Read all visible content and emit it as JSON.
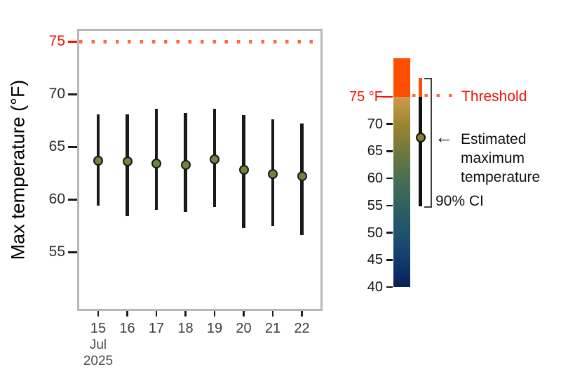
{
  "figure": {
    "y_axis": {
      "title": "Max temperature (°F)",
      "ticks": [
        {
          "label": "75",
          "value": 75,
          "red": true
        },
        {
          "label": "70",
          "value": 70,
          "red": false
        },
        {
          "label": "65",
          "value": 65,
          "red": false
        },
        {
          "label": "60",
          "value": 60,
          "red": false
        },
        {
          "label": "55",
          "value": 55,
          "red": false
        }
      ]
    },
    "x_axis": {
      "tick_labels": [
        "15",
        "16",
        "17",
        "18",
        "19",
        "20",
        "21",
        "22"
      ],
      "month_label": "Jul",
      "year_label": "2025"
    }
  },
  "chart_data": {
    "type": "errorbar",
    "title": "",
    "xlabel": "",
    "ylabel": "Max temperature (°F)",
    "categories": [
      "2025-07-15",
      "2025-07-16",
      "2025-07-17",
      "2025-07-18",
      "2025-07-19",
      "2025-07-20",
      "2025-07-21",
      "2025-07-22"
    ],
    "series": [
      {
        "name": "Estimated maximum temperature",
        "values": [
          63.7,
          63.6,
          63.4,
          63.3,
          63.8,
          62.8,
          62.4,
          62.2
        ]
      },
      {
        "name": "90% CI lower",
        "values": [
          59.4,
          58.4,
          59.0,
          58.8,
          59.3,
          57.3,
          57.5,
          56.6
        ]
      },
      {
        "name": "90% CI upper",
        "values": [
          68.1,
          68.1,
          68.6,
          68.2,
          68.6,
          68.0,
          67.6,
          67.2
        ]
      }
    ],
    "threshold": {
      "value": 75,
      "label": "Threshold"
    },
    "ylim": [
      49.5,
      76.2
    ],
    "grid": false,
    "legend_position": "right"
  },
  "legend": {
    "threshold_label": "Threshold",
    "arrow": "←",
    "estimate_label": "Estimated\nmaximum\ntemperature",
    "ci_label": "90% CI",
    "sample": {
      "estimate": 67.5,
      "ci_low": 54.8,
      "ci_high": 78.5
    },
    "colorbar": {
      "range": [
        40,
        82.1
      ],
      "clip_above": 75,
      "ticks": [
        {
          "label": "75 °F",
          "value": 75,
          "red": true
        },
        {
          "label": "70",
          "value": 70,
          "red": false
        },
        {
          "label": "65",
          "value": 65,
          "red": false
        },
        {
          "label": "60",
          "value": 60,
          "red": false
        },
        {
          "label": "55",
          "value": 55,
          "red": false
        },
        {
          "label": "50",
          "value": 50,
          "red": false
        },
        {
          "label": "45",
          "value": 45,
          "red": false
        },
        {
          "label": "40",
          "value": 40,
          "red": false
        }
      ],
      "gradient": [
        {
          "t": 82.1,
          "color": "#ff4e00"
        },
        {
          "t": 75.0,
          "color": "#ff4e00"
        },
        {
          "t": 74.99,
          "color": "#cf9a4e"
        },
        {
          "t": 70.0,
          "color": "#9c8530"
        },
        {
          "t": 65.0,
          "color": "#70793c"
        },
        {
          "t": 60.0,
          "color": "#4a6f50"
        },
        {
          "t": 55.0,
          "color": "#2f6160"
        },
        {
          "t": 50.0,
          "color": "#1f536e"
        },
        {
          "t": 45.0,
          "color": "#133c6e"
        },
        {
          "t": 40.0,
          "color": "#081f58"
        }
      ]
    }
  },
  "colors": {
    "red_text": "#ee1404",
    "orange_clip": "#ff4e00",
    "dotted_line": "#ff6a40",
    "point_fill": "#6d8639",
    "legend_point_fill": "#8b7b2d",
    "bar_color": "#191919",
    "panel_border": "#b7b7b7",
    "axis_text": "#2a2a2a",
    "x_text": "#3d3d3d",
    "sub_text": "#4d4d4d",
    "bracket": "#3f3f3f"
  }
}
